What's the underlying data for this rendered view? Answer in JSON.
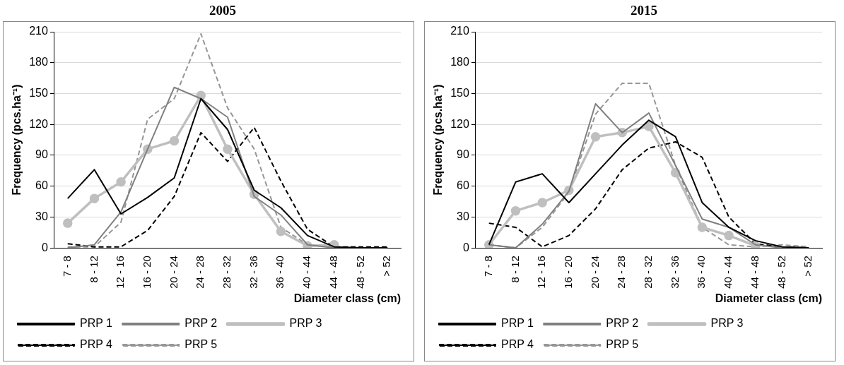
{
  "chart_data": [
    {
      "type": "line",
      "title": "2005",
      "xlabel": "Diameter class (cm)",
      "ylabel": "Frequency (pcs.ha⁻¹)",
      "categories": [
        "7 - 8",
        "8 - 12",
        "12 - 16",
        "16 - 20",
        "20 - 24",
        "24 - 28",
        "28 - 32",
        "32 - 36",
        "36 - 40",
        "40 - 44",
        "44 - 48",
        "48 - 52",
        "> 52"
      ],
      "ylim": [
        0,
        210
      ],
      "yticks": [
        0,
        30,
        60,
        90,
        120,
        150,
        180,
        210
      ],
      "grid": "y",
      "legend": "bottom",
      "series": [
        {
          "name": "PRP 1",
          "color": "#000000",
          "line_style": "solid",
          "marker": "none",
          "values": [
            48,
            76,
            33,
            49,
            68,
            145,
            115,
            56,
            39,
            12,
            1,
            0,
            0
          ]
        },
        {
          "name": "PRP 2",
          "color": "#808080",
          "line_style": "solid",
          "marker": "none",
          "values": [
            0,
            3,
            35,
            96,
            156,
            145,
            127,
            50,
            32,
            3,
            0,
            0,
            0
          ]
        },
        {
          "name": "PRP 3",
          "color": "#bfbfbf",
          "line_style": "solid",
          "marker": "circle",
          "values": [
            24,
            48,
            64,
            96,
            104,
            148,
            96,
            52,
            16,
            2,
            3,
            null,
            null
          ]
        },
        {
          "name": "PRP 4",
          "color": "#000000",
          "line_style": "dashed",
          "marker": "none",
          "values": [
            4,
            1,
            1,
            17,
            50,
            112,
            84,
            117,
            65,
            18,
            1,
            1,
            1
          ]
        },
        {
          "name": "PRP 5",
          "color": "#969696",
          "line_style": "dashed",
          "marker": "none",
          "values": [
            1,
            1,
            25,
            125,
            145,
            208,
            136,
            96,
            20,
            3,
            1,
            0,
            0
          ]
        }
      ]
    },
    {
      "type": "line",
      "title": "2015",
      "xlabel": "Diameter class (cm)",
      "ylabel": "Frequency (pcs.ha⁻¹)",
      "categories": [
        "7 - 8",
        "8 - 12",
        "12 - 16",
        "16 - 20",
        "20 - 24",
        "24 - 28",
        "28 - 32",
        "32 - 36",
        "36 - 40",
        "40 - 44",
        "44 - 48",
        "48 - 52",
        "> 52"
      ],
      "ylim": [
        0,
        210
      ],
      "yticks": [
        0,
        30,
        60,
        90,
        120,
        150,
        180,
        210
      ],
      "grid": "y",
      "legend": "bottom",
      "series": [
        {
          "name": "PRP 1",
          "color": "#000000",
          "line_style": "solid",
          "marker": "none",
          "values": [
            3,
            64,
            72,
            44,
            72,
            100,
            124,
            108,
            44,
            20,
            7,
            1,
            0
          ]
        },
        {
          "name": "PRP 2",
          "color": "#808080",
          "line_style": "solid",
          "marker": "none",
          "values": [
            3,
            0,
            23,
            55,
            140,
            112,
            131,
            80,
            28,
            20,
            3,
            0,
            0
          ]
        },
        {
          "name": "PRP 3",
          "color": "#bfbfbf",
          "line_style": "solid",
          "marker": "circle",
          "values": [
            3,
            36,
            44,
            56,
            108,
            112,
            118,
            73,
            20,
            12,
            2,
            null,
            null
          ]
        },
        {
          "name": "PRP 4",
          "color": "#000000",
          "line_style": "dashed",
          "marker": "none",
          "values": [
            24,
            20,
            1,
            12,
            38,
            76,
            97,
            103,
            88,
            30,
            4,
            1,
            0
          ]
        },
        {
          "name": "PRP 5",
          "color": "#969696",
          "line_style": "dashed",
          "marker": "none",
          "values": [
            3,
            0,
            20,
            54,
            130,
            160,
            160,
            80,
            20,
            3,
            1,
            3,
            1
          ]
        }
      ]
    }
  ]
}
